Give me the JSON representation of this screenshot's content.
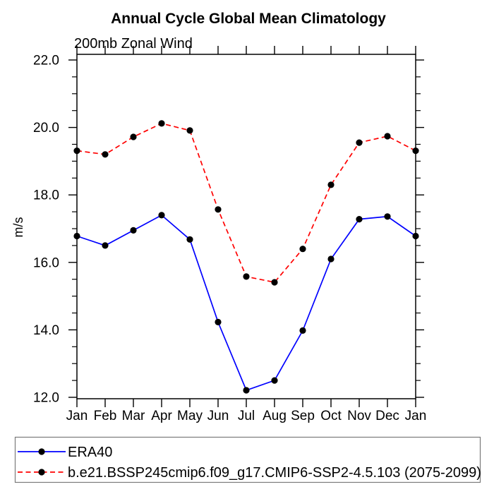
{
  "chart_data": {
    "type": "line",
    "title": "Annual Cycle Global Mean Climatology",
    "subtitle": "200mb Zonal Wind",
    "ylabel": "m/s",
    "x_categories": [
      "Jan",
      "Feb",
      "Mar",
      "Apr",
      "May",
      "Jun",
      "Jul",
      "Aug",
      "Sep",
      "Oct",
      "Nov",
      "Dec",
      "Jan"
    ],
    "y_major_ticks": {
      "values": [
        12,
        14,
        16,
        18,
        20,
        22
      ],
      "labels": [
        "12.0",
        "14.0",
        "16.0",
        "18.0",
        "20.0",
        "22.0"
      ]
    },
    "y_minor_step": 0.5,
    "ylim": [
      11.96,
      22.17
    ],
    "grid": false,
    "legend_position": "bottom",
    "marker_color": "#000000",
    "series": [
      {
        "name": "ERA40",
        "color": "#0000ff",
        "style": "solid",
        "marker": "filled-circle",
        "values": [
          16.78,
          16.5,
          16.95,
          17.4,
          16.68,
          14.23,
          12.21,
          12.5,
          13.98,
          16.1,
          17.28,
          17.36,
          16.78
        ]
      },
      {
        "name": "b.e21.BSSP245cmip6.f09_g17.CMIP6-SSP2-4.5.103 (2075-2099)",
        "color": "#ff0000",
        "style": "dashed",
        "marker": "filled-circle",
        "values": [
          19.31,
          19.2,
          19.72,
          20.12,
          19.91,
          17.57,
          15.58,
          15.41,
          16.4,
          18.3,
          19.55,
          19.74,
          19.31
        ]
      }
    ]
  }
}
